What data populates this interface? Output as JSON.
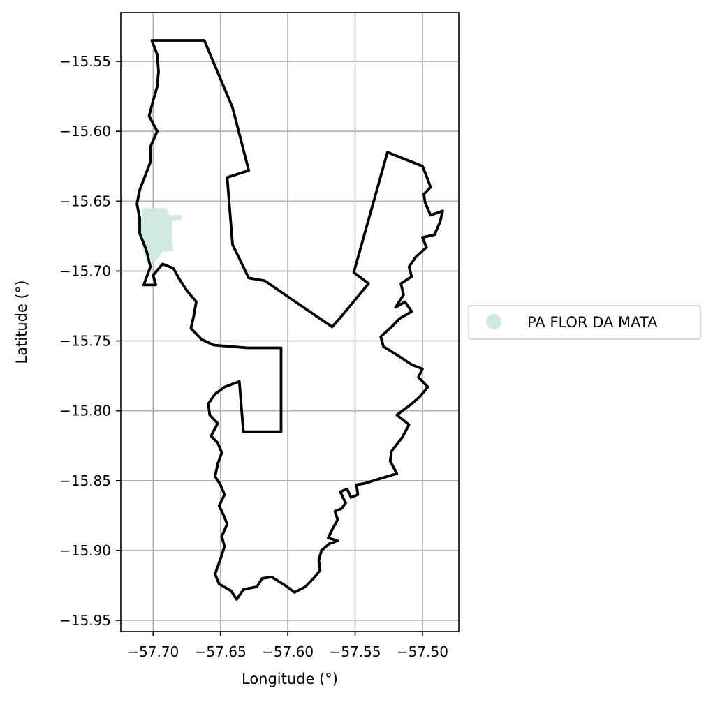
{
  "chart_data": {
    "type": "map",
    "xlabel": "Longitude (°)",
    "ylabel": "Latitude (°)",
    "xlim": [
      -57.724,
      -57.473
    ],
    "ylim": [
      -15.958,
      -15.515
    ],
    "grid": true,
    "x_ticks": [
      -57.7,
      -57.65,
      -57.6,
      -57.55,
      -57.5
    ],
    "x_tick_labels": [
      "−57.70",
      "−57.65",
      "−57.60",
      "−57.55",
      "−57.50"
    ],
    "y_ticks": [
      -15.55,
      -15.6,
      -15.65,
      -15.7,
      -15.75,
      -15.8,
      -15.85,
      -15.9,
      -15.95
    ],
    "y_tick_labels": [
      "−15.55",
      "−15.60",
      "−15.65",
      "−15.70",
      "−15.75",
      "−15.80",
      "−15.85",
      "−15.90",
      "−15.95"
    ],
    "legend": {
      "placement": "right",
      "entries": [
        {
          "label": "PA FLOR DA MATA",
          "color": "#cfeadf",
          "marker": "circle"
        }
      ]
    },
    "outline_color": "#000000",
    "outline": [
      [
        -57.701,
        -15.535
      ],
      [
        -57.662,
        -15.535
      ],
      [
        -57.641,
        -15.583
      ],
      [
        -57.629,
        -15.628
      ],
      [
        -57.645,
        -15.633
      ],
      [
        -57.641,
        -15.681
      ],
      [
        -57.629,
        -15.705
      ],
      [
        -57.617,
        -15.707
      ],
      [
        -57.605,
        -15.715
      ],
      [
        -57.567,
        -15.74
      ],
      [
        -57.559,
        -15.731
      ],
      [
        -57.54,
        -15.709
      ],
      [
        -57.551,
        -15.701
      ],
      [
        -57.526,
        -15.615
      ],
      [
        -57.5,
        -15.625
      ],
      [
        -57.497,
        -15.632
      ],
      [
        -57.494,
        -15.64
      ],
      [
        -57.499,
        -15.645
      ],
      [
        -57.498,
        -15.651
      ],
      [
        -57.494,
        -15.66
      ],
      [
        -57.485,
        -15.657
      ],
      [
        -57.487,
        -15.665
      ],
      [
        -57.491,
        -15.674
      ],
      [
        -57.5,
        -15.676
      ],
      [
        -57.497,
        -15.683
      ],
      [
        -57.505,
        -15.69
      ],
      [
        -57.51,
        -15.697
      ],
      [
        -57.508,
        -15.704
      ],
      [
        -57.516,
        -15.709
      ],
      [
        -57.514,
        -15.717
      ],
      [
        -57.52,
        -15.726
      ],
      [
        -57.513,
        -15.722
      ],
      [
        -57.508,
        -15.729
      ],
      [
        -57.517,
        -15.734
      ],
      [
        -57.523,
        -15.74
      ],
      [
        -57.531,
        -15.747
      ],
      [
        -57.529,
        -15.754
      ],
      [
        -57.519,
        -15.76
      ],
      [
        -57.508,
        -15.767
      ],
      [
        -57.5,
        -15.77
      ],
      [
        -57.503,
        -15.776
      ],
      [
        -57.496,
        -15.783
      ],
      [
        -57.502,
        -15.79
      ],
      [
        -57.508,
        -15.795
      ],
      [
        -57.519,
        -15.803
      ],
      [
        -57.51,
        -15.81
      ],
      [
        -57.515,
        -15.819
      ],
      [
        -57.523,
        -15.829
      ],
      [
        -57.524,
        -15.836
      ],
      [
        -57.519,
        -15.845
      ],
      [
        -57.533,
        -15.849
      ],
      [
        -57.543,
        -15.852
      ],
      [
        -57.549,
        -15.853
      ],
      [
        -57.548,
        -15.86
      ],
      [
        -57.553,
        -15.862
      ],
      [
        -57.556,
        -15.856
      ],
      [
        -57.561,
        -15.858
      ],
      [
        -57.557,
        -15.866
      ],
      [
        -57.56,
        -15.87
      ],
      [
        -57.565,
        -15.872
      ],
      [
        -57.563,
        -15.878
      ],
      [
        -57.567,
        -15.885
      ],
      [
        -57.57,
        -15.891
      ],
      [
        -57.563,
        -15.893
      ],
      [
        -57.569,
        -15.895
      ],
      [
        -57.575,
        -15.9
      ],
      [
        -57.577,
        -15.907
      ],
      [
        -57.576,
        -15.914
      ],
      [
        -57.58,
        -15.919
      ],
      [
        -57.587,
        -15.926
      ],
      [
        -57.595,
        -15.93
      ],
      [
        -57.602,
        -15.925
      ],
      [
        -57.612,
        -15.919
      ],
      [
        -57.619,
        -15.92
      ],
      [
        -57.623,
        -15.926
      ],
      [
        -57.633,
        -15.928
      ],
      [
        -57.638,
        -15.935
      ],
      [
        -57.642,
        -15.929
      ],
      [
        -57.651,
        -15.924
      ],
      [
        -57.654,
        -15.917
      ],
      [
        -57.65,
        -15.906
      ],
      [
        -57.647,
        -15.897
      ],
      [
        -57.649,
        -15.89
      ],
      [
        -57.645,
        -15.881
      ],
      [
        -57.648,
        -15.874
      ],
      [
        -57.651,
        -15.868
      ],
      [
        -57.647,
        -15.86
      ],
      [
        -57.65,
        -15.853
      ],
      [
        -57.654,
        -15.847
      ],
      [
        -57.652,
        -15.838
      ],
      [
        -57.649,
        -15.83
      ],
      [
        -57.652,
        -15.823
      ],
      [
        -57.657,
        -15.818
      ],
      [
        -57.652,
        -15.809
      ],
      [
        -57.658,
        -15.803
      ],
      [
        -57.659,
        -15.795
      ],
      [
        -57.654,
        -15.788
      ],
      [
        -57.647,
        -15.783
      ],
      [
        -57.636,
        -15.779
      ],
      [
        -57.633,
        -15.815
      ],
      [
        -57.605,
        -15.815
      ],
      [
        -57.605,
        -15.755
      ],
      [
        -57.63,
        -15.755
      ],
      [
        -57.655,
        -15.753
      ],
      [
        -57.664,
        -15.749
      ],
      [
        -57.672,
        -15.741
      ],
      [
        -57.67,
        -15.733
      ],
      [
        -57.668,
        -15.722
      ],
      [
        -57.675,
        -15.714
      ],
      [
        -57.681,
        -15.705
      ],
      [
        -57.685,
        -15.698
      ],
      [
        -57.693,
        -15.695
      ],
      [
        -57.7,
        -15.703
      ],
      [
        -57.698,
        -15.71
      ],
      [
        -57.707,
        -15.71
      ],
      [
        -57.702,
        -15.697
      ],
      [
        -57.705,
        -15.685
      ],
      [
        -57.71,
        -15.673
      ],
      [
        -57.71,
        -15.662
      ],
      [
        -57.712,
        -15.652
      ],
      [
        -57.71,
        -15.642
      ],
      [
        -57.706,
        -15.632
      ],
      [
        -57.702,
        -15.622
      ],
      [
        -57.702,
        -15.611
      ],
      [
        -57.697,
        -15.6
      ],
      [
        -57.703,
        -15.589
      ],
      [
        -57.7,
        -15.578
      ],
      [
        -57.697,
        -15.568
      ],
      [
        -57.696,
        -15.557
      ],
      [
        -57.697,
        -15.545
      ],
      [
        -57.701,
        -15.535
      ]
    ],
    "area_polygon": [
      [
        -57.708,
        -15.655
      ],
      [
        -57.69,
        -15.655
      ],
      [
        -57.688,
        -15.66
      ],
      [
        -57.679,
        -15.66
      ],
      [
        -57.679,
        -15.663
      ],
      [
        -57.686,
        -15.664
      ],
      [
        -57.686,
        -15.675
      ],
      [
        -57.685,
        -15.686
      ],
      [
        -57.693,
        -15.686
      ],
      [
        -57.698,
        -15.693
      ],
      [
        -57.706,
        -15.69
      ],
      [
        -57.71,
        -15.675
      ]
    ]
  }
}
